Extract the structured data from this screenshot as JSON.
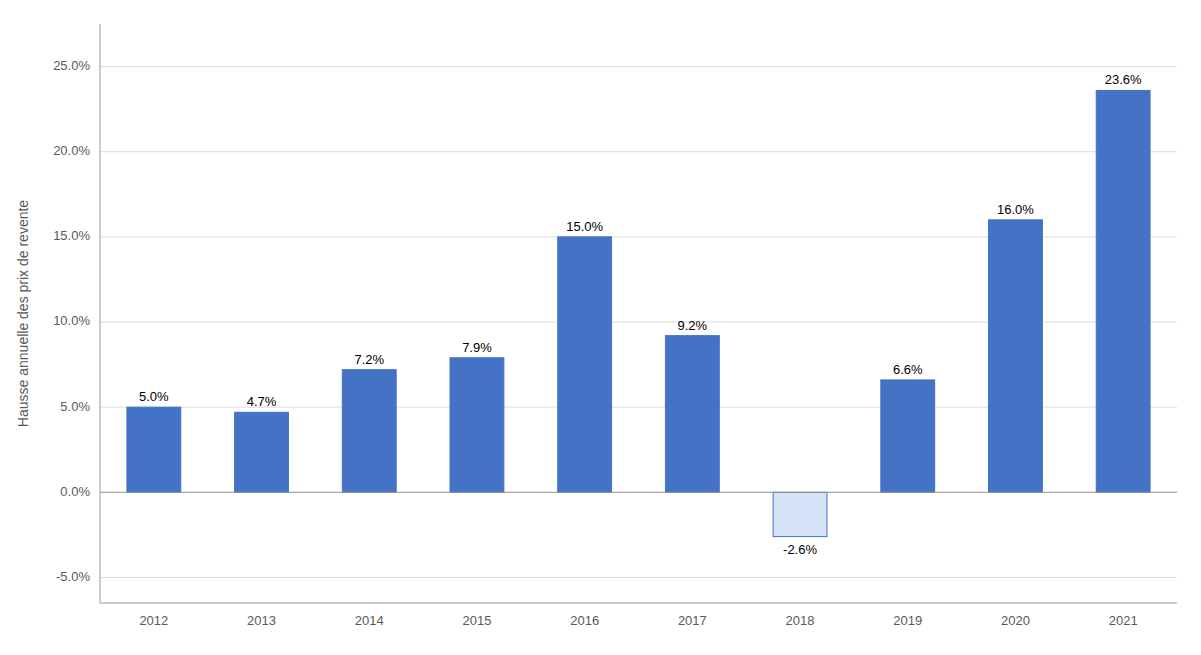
{
  "chart_data": {
    "type": "bar",
    "ylabel": "Hausse annuelle des prix de revente",
    "categories": [
      "2012",
      "2013",
      "2014",
      "2015",
      "2016",
      "2017",
      "2018",
      "2019",
      "2020",
      "2021"
    ],
    "values": [
      5.0,
      4.7,
      7.2,
      7.9,
      15.0,
      9.2,
      -2.6,
      6.6,
      16.0,
      23.6
    ],
    "value_labels": [
      "5.0%",
      "4.7%",
      "7.2%",
      "7.9%",
      "15.0%",
      "9.2%",
      "-2.6%",
      "6.6%",
      "16.0%",
      "23.6%"
    ],
    "color": "#4472C4",
    "colors": [
      "#4472C4",
      "#4472C4",
      "#4472C4",
      "#4472C4",
      "#4472C4",
      "#4472C4",
      "#D6E4F7",
      "#4472C4",
      "#4472C4",
      "#4472C4"
    ],
    "ylim": [
      -6.5,
      27.5
    ],
    "yticks": [
      {
        "value": -5.0,
        "label": "-5.0%"
      },
      {
        "value": 0.0,
        "label": "0.0%"
      },
      {
        "value": 5.0,
        "label": "5.0%"
      },
      {
        "value": 10.0,
        "label": "10.0%"
      },
      {
        "value": 15.0,
        "label": "15.0%"
      },
      {
        "value": 20.0,
        "label": "20.0%"
      },
      {
        "value": 25.0,
        "label": "25.0%"
      }
    ],
    "grid": true,
    "data_labels": true
  }
}
